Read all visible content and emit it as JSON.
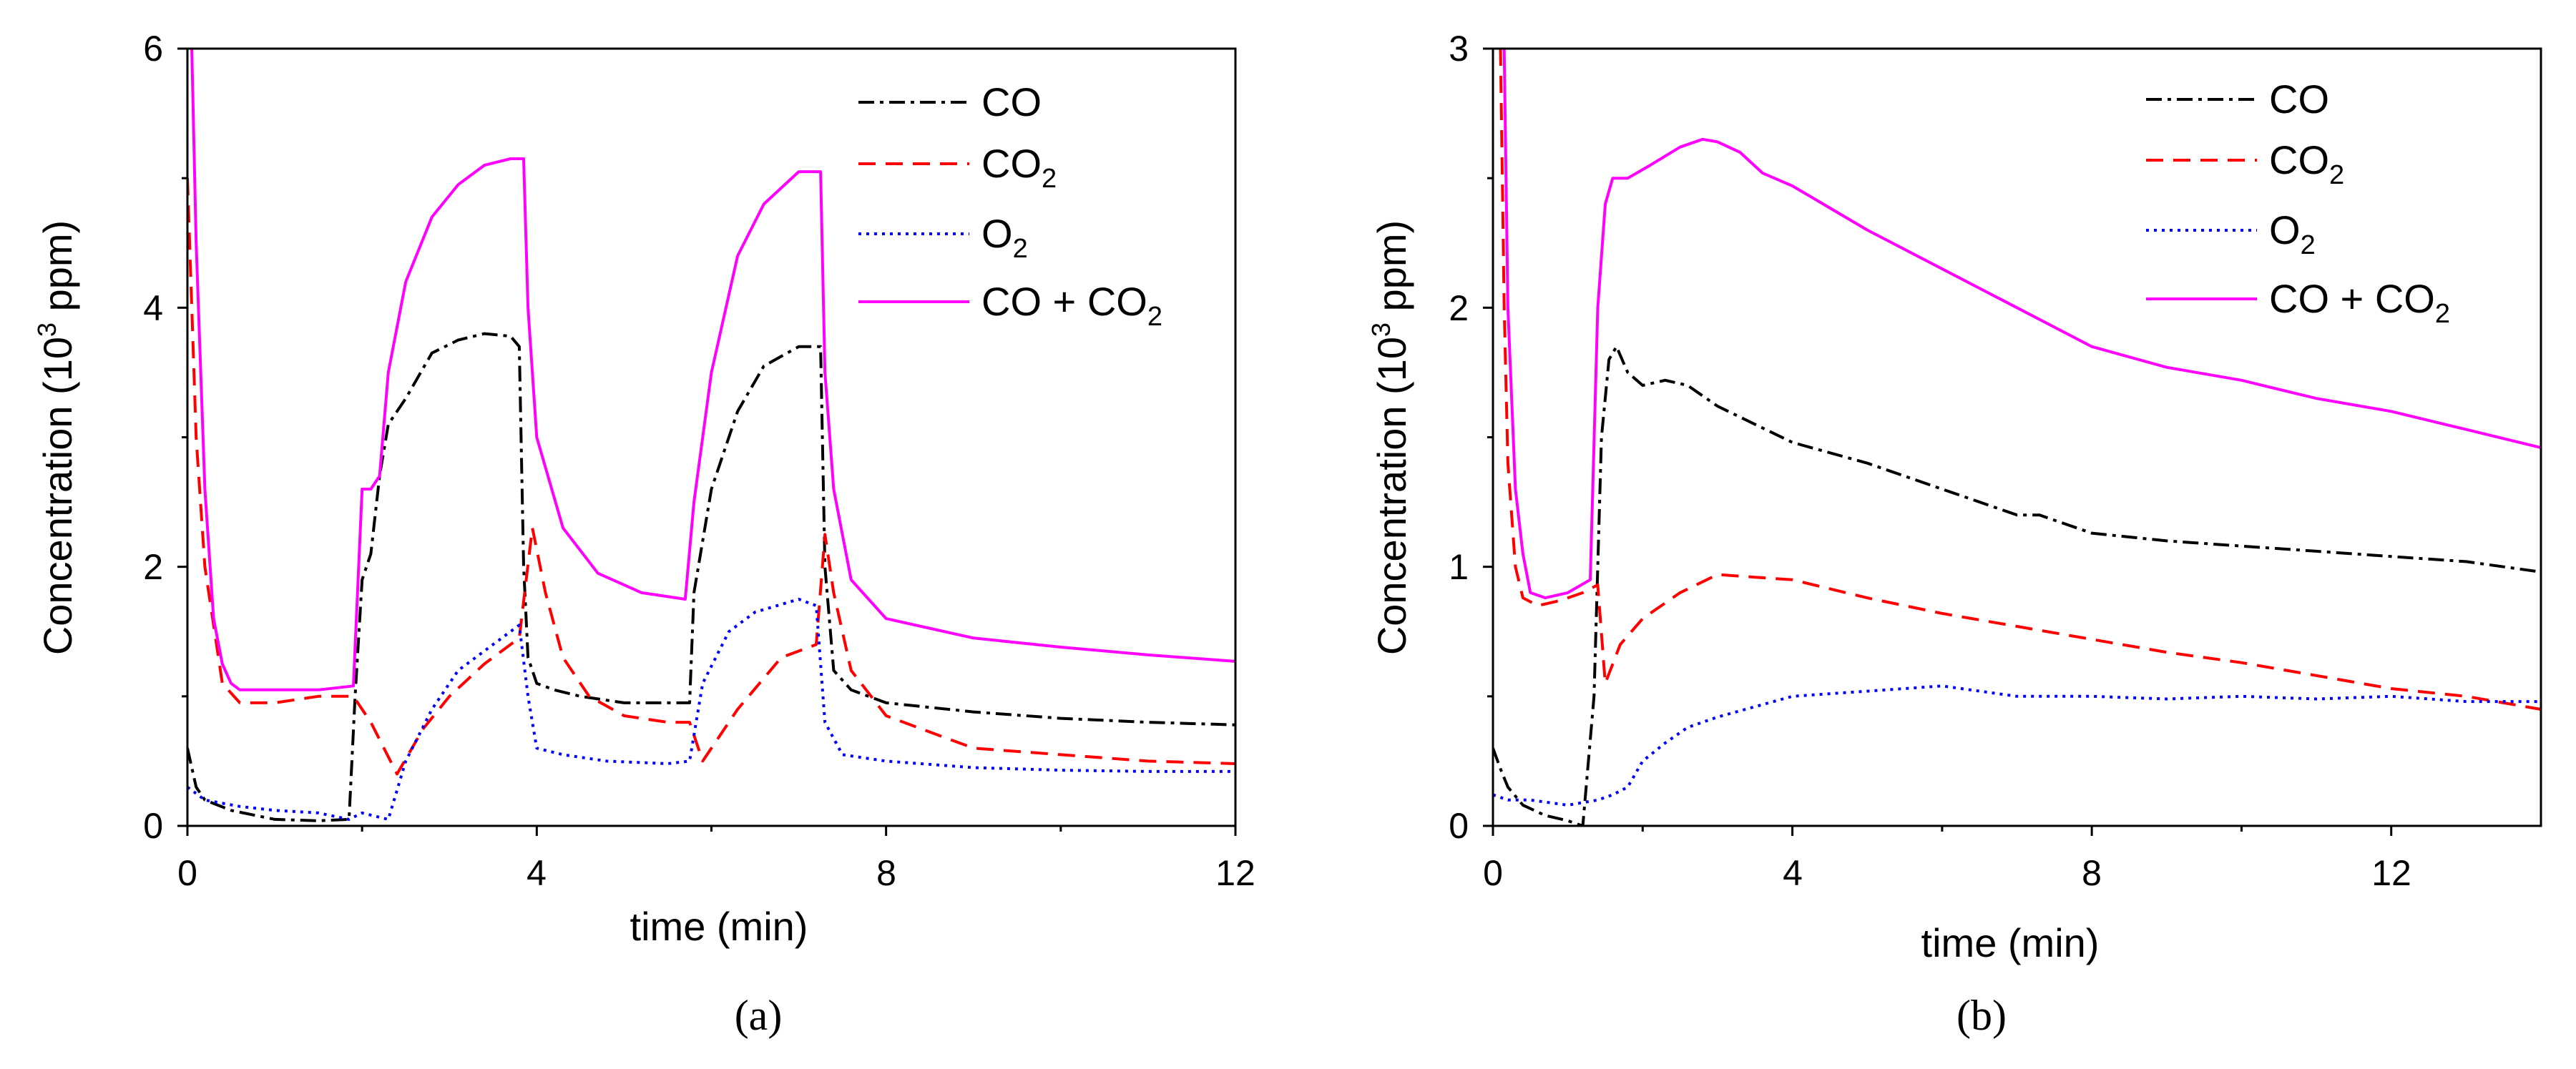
{
  "chart_data": [
    {
      "type": "line",
      "panel_label": "(a)",
      "xlabel": "time (min)",
      "ylabel_main": "Concentration (10",
      "ylabel_sup": "3",
      "ylabel_tail": " ppm)",
      "xlim": [
        0,
        12
      ],
      "ylim": [
        0,
        6
      ],
      "xticks": [
        0,
        4,
        8,
        12
      ],
      "yticks": [
        0,
        2,
        4,
        6
      ],
      "xtick_labels": [
        "0",
        "4",
        "8",
        "12"
      ],
      "ytick_labels": [
        "0",
        "2",
        "4",
        "6"
      ],
      "legend": {
        "position": "top-right",
        "entries": [
          {
            "main": "CO",
            "sub": ""
          },
          {
            "main": "CO",
            "sub": "2"
          },
          {
            "main": "O",
            "sub": "2"
          },
          {
            "main": "CO + CO",
            "sub": "2"
          }
        ]
      },
      "series": [
        {
          "name": "CO",
          "color": "#000000",
          "dash": "dashdot",
          "x": [
            0,
            0.05,
            0.1,
            0.2,
            0.5,
            1.0,
            1.5,
            1.85,
            1.92,
            2.0,
            2.1,
            2.2,
            2.3,
            2.5,
            2.8,
            3.1,
            3.4,
            3.7,
            3.8,
            3.85,
            3.9,
            4.0,
            4.2,
            4.5,
            5.0,
            5.5,
            5.75,
            5.8,
            6.0,
            6.3,
            6.6,
            7.0,
            7.25,
            7.3,
            7.4,
            7.6,
            8.0,
            9.0,
            10.0,
            11.0,
            12.0
          ],
          "y": [
            0.6,
            0.45,
            0.3,
            0.2,
            0.12,
            0.05,
            0.04,
            0.05,
            1.0,
            1.9,
            2.1,
            2.7,
            3.1,
            3.3,
            3.65,
            3.75,
            3.8,
            3.78,
            3.7,
            2.0,
            1.3,
            1.1,
            1.05,
            1.0,
            0.95,
            0.95,
            0.95,
            1.8,
            2.6,
            3.2,
            3.55,
            3.7,
            3.7,
            2.0,
            1.2,
            1.05,
            0.95,
            0.88,
            0.83,
            0.8,
            0.78
          ]
        },
        {
          "name": "CO2",
          "color": "#ff0000",
          "dash": "dash",
          "x": [
            0,
            0.1,
            0.2,
            0.4,
            0.6,
            1.0,
            1.5,
            1.9,
            2.1,
            2.4,
            2.7,
            3.0,
            3.4,
            3.8,
            3.95,
            4.1,
            4.3,
            4.6,
            5.0,
            5.5,
            5.75,
            5.9,
            6.3,
            6.8,
            7.2,
            7.3,
            7.4,
            7.6,
            8.0,
            9.0,
            10.0,
            11.0,
            12.0
          ],
          "y": [
            5.0,
            3.0,
            2.0,
            1.1,
            0.95,
            0.95,
            1.0,
            1.0,
            0.8,
            0.4,
            0.75,
            1.0,
            1.25,
            1.45,
            2.3,
            1.8,
            1.3,
            1.0,
            0.85,
            0.8,
            0.8,
            0.5,
            0.9,
            1.3,
            1.4,
            2.25,
            1.8,
            1.2,
            0.85,
            0.6,
            0.55,
            0.5,
            0.48
          ]
        },
        {
          "name": "O2",
          "color": "#0000ff",
          "dash": "dot",
          "x": [
            0,
            0.2,
            0.6,
            1.0,
            1.5,
            1.85,
            2.0,
            2.3,
            2.5,
            2.8,
            3.1,
            3.4,
            3.8,
            3.9,
            4.0,
            4.3,
            4.8,
            5.5,
            5.75,
            5.9,
            6.2,
            6.5,
            7.0,
            7.2,
            7.3,
            7.5,
            8.0,
            9.0,
            10.0,
            11.0,
            12.0
          ],
          "y": [
            0.3,
            0.2,
            0.15,
            0.12,
            0.1,
            0.05,
            0.1,
            0.05,
            0.5,
            0.9,
            1.2,
            1.35,
            1.55,
            1.0,
            0.6,
            0.55,
            0.5,
            0.48,
            0.5,
            1.1,
            1.5,
            1.65,
            1.75,
            1.7,
            0.8,
            0.55,
            0.5,
            0.45,
            0.43,
            0.42,
            0.42
          ]
        },
        {
          "name": "CO + CO2",
          "color": "#ff00ff",
          "dash": "solid",
          "x": [
            0.05,
            0.1,
            0.2,
            0.3,
            0.4,
            0.5,
            0.6,
            1.0,
            1.5,
            1.9,
            2.0,
            2.1,
            2.2,
            2.3,
            2.5,
            2.8,
            3.1,
            3.4,
            3.7,
            3.85,
            3.9,
            4.0,
            4.3,
            4.7,
            5.2,
            5.7,
            5.8,
            6.0,
            6.3,
            6.6,
            7.0,
            7.25,
            7.3,
            7.4,
            7.6,
            8.0,
            9.0,
            10.0,
            11.0,
            12.0
          ],
          "y": [
            6.0,
            4.5,
            2.6,
            1.6,
            1.25,
            1.1,
            1.05,
            1.05,
            1.05,
            1.08,
            2.6,
            2.6,
            2.7,
            3.5,
            4.2,
            4.7,
            4.95,
            5.1,
            5.15,
            5.15,
            4.0,
            3.0,
            2.3,
            1.95,
            1.8,
            1.75,
            2.5,
            3.5,
            4.4,
            4.8,
            5.05,
            5.05,
            3.5,
            2.6,
            1.9,
            1.6,
            1.45,
            1.38,
            1.32,
            1.27
          ]
        }
      ]
    },
    {
      "type": "line",
      "panel_label": "(b)",
      "xlabel": "time (min)",
      "ylabel_main": "Concentration (10",
      "ylabel_sup": "3",
      "ylabel_tail": " ppm)",
      "xlim": [
        0,
        14
      ],
      "ylim": [
        0,
        3
      ],
      "xticks": [
        0,
        4,
        8,
        12
      ],
      "yticks": [
        0,
        1,
        2,
        3
      ],
      "xtick_labels": [
        "0",
        "4",
        "8",
        "12"
      ],
      "ytick_labels": [
        "0",
        "1",
        "2",
        "3"
      ],
      "legend": {
        "position": "top-right",
        "entries": [
          {
            "main": "CO",
            "sub": ""
          },
          {
            "main": "CO",
            "sub": "2"
          },
          {
            "main": "O",
            "sub": "2"
          },
          {
            "main": "CO + CO",
            "sub": "2"
          }
        ]
      },
      "series": [
        {
          "name": "CO",
          "color": "#000000",
          "dash": "dashdot",
          "x": [
            0,
            0.1,
            0.2,
            0.4,
            0.7,
            1.0,
            1.2,
            1.35,
            1.45,
            1.55,
            1.65,
            1.8,
            2.0,
            2.3,
            2.6,
            3.0,
            3.5,
            4.0,
            5.0,
            6.0,
            7.0,
            7.3,
            8.0,
            9.0,
            10.0,
            11.0,
            12.0,
            13.0,
            14.0
          ],
          "y": [
            0.3,
            0.22,
            0.15,
            0.08,
            0.04,
            0.02,
            0.0,
            0.5,
            1.5,
            1.8,
            1.85,
            1.75,
            1.7,
            1.72,
            1.7,
            1.62,
            1.55,
            1.48,
            1.4,
            1.3,
            1.2,
            1.2,
            1.13,
            1.1,
            1.08,
            1.06,
            1.04,
            1.02,
            0.98
          ]
        },
        {
          "name": "CO2",
          "color": "#ff0000",
          "dash": "dash",
          "x": [
            0.1,
            0.15,
            0.2,
            0.3,
            0.4,
            0.6,
            0.9,
            1.2,
            1.4,
            1.5,
            1.7,
            2.0,
            2.5,
            3.0,
            3.5,
            4.0,
            5.0,
            6.0,
            7.0,
            8.0,
            9.0,
            10.0,
            11.0,
            12.0,
            13.0,
            14.0
          ],
          "y": [
            3.0,
            2.0,
            1.4,
            1.0,
            0.88,
            0.85,
            0.87,
            0.9,
            0.93,
            0.55,
            0.7,
            0.8,
            0.9,
            0.97,
            0.96,
            0.95,
            0.88,
            0.82,
            0.77,
            0.72,
            0.67,
            0.63,
            0.58,
            0.53,
            0.5,
            0.45
          ]
        },
        {
          "name": "O2",
          "color": "#0000ff",
          "dash": "dot",
          "x": [
            0,
            0.2,
            0.5,
            1.0,
            1.4,
            1.6,
            1.8,
            2.0,
            2.3,
            2.6,
            3.0,
            3.5,
            4.0,
            5.0,
            6.0,
            7.0,
            8.0,
            9.0,
            10.0,
            11.0,
            12.0,
            13.0,
            14.0
          ],
          "y": [
            0.12,
            0.1,
            0.1,
            0.08,
            0.1,
            0.12,
            0.15,
            0.25,
            0.32,
            0.38,
            0.42,
            0.46,
            0.5,
            0.52,
            0.54,
            0.5,
            0.5,
            0.49,
            0.5,
            0.49,
            0.5,
            0.48,
            0.48
          ]
        },
        {
          "name": "CO + CO2",
          "color": "#ff00ff",
          "dash": "solid",
          "x": [
            0.15,
            0.2,
            0.3,
            0.4,
            0.5,
            0.7,
            1.0,
            1.3,
            1.4,
            1.5,
            1.6,
            1.8,
            2.1,
            2.5,
            2.8,
            3.0,
            3.3,
            3.6,
            4.0,
            5.0,
            6.0,
            7.0,
            8.0,
            9.0,
            10.0,
            11.0,
            12.0,
            13.0,
            14.0
          ],
          "y": [
            3.0,
            2.0,
            1.3,
            1.05,
            0.9,
            0.88,
            0.9,
            0.95,
            2.0,
            2.4,
            2.5,
            2.5,
            2.55,
            2.62,
            2.65,
            2.64,
            2.6,
            2.52,
            2.47,
            2.3,
            2.15,
            2.0,
            1.85,
            1.77,
            1.72,
            1.65,
            1.6,
            1.53,
            1.46
          ]
        }
      ]
    }
  ]
}
